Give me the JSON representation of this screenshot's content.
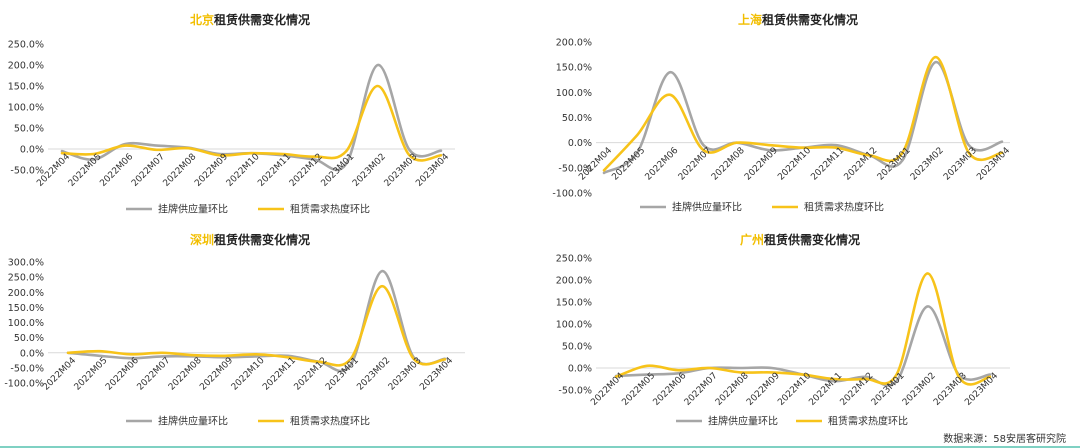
{
  "footer": {
    "source": "数据来源：58安居客研究院"
  },
  "colors": {
    "listing": "#A6A6A6",
    "demand": "#F7C31A",
    "title_city": "#F2BE00",
    "zero_line": "#D9D9D9"
  },
  "chart_data": [
    {
      "type": "line",
      "title_city": "北京",
      "title_rest": "租赁供需变化情况",
      "categories": [
        "2022M04",
        "2022M05",
        "2022M06",
        "2022M07",
        "2022M08",
        "2022M09",
        "2022M10",
        "2022M11",
        "2022M12",
        "2023M01",
        "2023M02",
        "2023M03",
        "2023M04"
      ],
      "yticks": [
        "250.0%",
        "200.0%",
        "150.0%",
        "100.0%",
        "50.0%",
        "0.0%",
        "-50.0%"
      ],
      "ylim": [
        -50,
        250
      ],
      "series": [
        {
          "name": "挂牌供应量环比",
          "values": [
            -5,
            -25,
            12,
            8,
            3,
            -12,
            -10,
            -15,
            -25,
            -35,
            200,
            -2,
            -4
          ]
        },
        {
          "name": "租赁需求热度环比",
          "values": [
            -10,
            -12,
            8,
            -2,
            2,
            -15,
            -10,
            -12,
            -18,
            -5,
            150,
            -15,
            -15
          ]
        }
      ]
    },
    {
      "type": "line",
      "title_city": "上海",
      "title_rest": "租赁供需变化情况",
      "categories": [
        "2022M04",
        "2022M05",
        "2022M06",
        "2022M07",
        "2022M08",
        "2022M09",
        "2022M10",
        "2022M11",
        "2022M12",
        "2023M01",
        "2023M02",
        "2023M03",
        "2023M04"
      ],
      "yticks": [
        "200.0%",
        "150.0%",
        "100.0%",
        "50.0%",
        "0.0%",
        "-50.0%",
        "-100.0%"
      ],
      "ylim": [
        -100,
        200
      ],
      "series": [
        {
          "name": "挂牌供应量环比",
          "values": [
            -60,
            -20,
            140,
            -5,
            0,
            -15,
            -10,
            -5,
            -25,
            -35,
            160,
            -5,
            2
          ]
        },
        {
          "name": "租赁需求热度环比",
          "values": [
            -55,
            15,
            95,
            -15,
            0,
            -5,
            -10,
            -10,
            -25,
            -20,
            170,
            -20,
            -20
          ]
        }
      ]
    },
    {
      "type": "line",
      "title_city": "深圳",
      "title_rest": "租赁供需变化情况",
      "categories": [
        "2022M04",
        "2022M05",
        "2022M06",
        "2022M07",
        "2022M08",
        "2022M09",
        "2022M10",
        "2022M11",
        "2022M12",
        "2023M01",
        "2023M02",
        "2023M03",
        "2023M04"
      ],
      "yticks": [
        "300.0%",
        "250.0%",
        "200.0%",
        "150.0%",
        "100.0%",
        "50.0%",
        "0.0%",
        "-50.0%",
        "-100.0%"
      ],
      "ylim": [
        -100,
        300
      ],
      "series": [
        {
          "name": "挂牌供应量环比",
          "values": [
            0,
            -10,
            -18,
            -12,
            -12,
            -15,
            -12,
            -10,
            -30,
            -40,
            270,
            -15,
            -20
          ]
        },
        {
          "name": "租赁需求热度环比",
          "values": [
            0,
            5,
            -5,
            0,
            -8,
            -10,
            -5,
            -15,
            -30,
            -20,
            220,
            -20,
            -22
          ]
        }
      ]
    },
    {
      "type": "line",
      "title_city": "广州",
      "title_rest": "租赁供需变化情况",
      "categories": [
        "2022M04",
        "2022M05",
        "2022M06",
        "2022M07",
        "2022M08",
        "2022M09",
        "2022M10",
        "2022M11",
        "2022M12",
        "2023M01",
        "2023M02",
        "2023M03",
        "2023M04"
      ],
      "yticks": [
        "250.0%",
        "200.0%",
        "150.0%",
        "100.0%",
        "50.0%",
        "0.0%",
        "-50.0%"
      ],
      "ylim": [
        -50,
        250
      ],
      "series": [
        {
          "name": "挂牌供应量环比",
          "values": [
            -18,
            -15,
            -12,
            0,
            0,
            0,
            -15,
            -30,
            -20,
            -30,
            140,
            -15,
            -15
          ]
        },
        {
          "name": "租赁需求热度环比",
          "values": [
            -20,
            5,
            -5,
            0,
            -10,
            -10,
            -15,
            -25,
            -25,
            -15,
            215,
            -20,
            -20
          ]
        }
      ]
    }
  ]
}
